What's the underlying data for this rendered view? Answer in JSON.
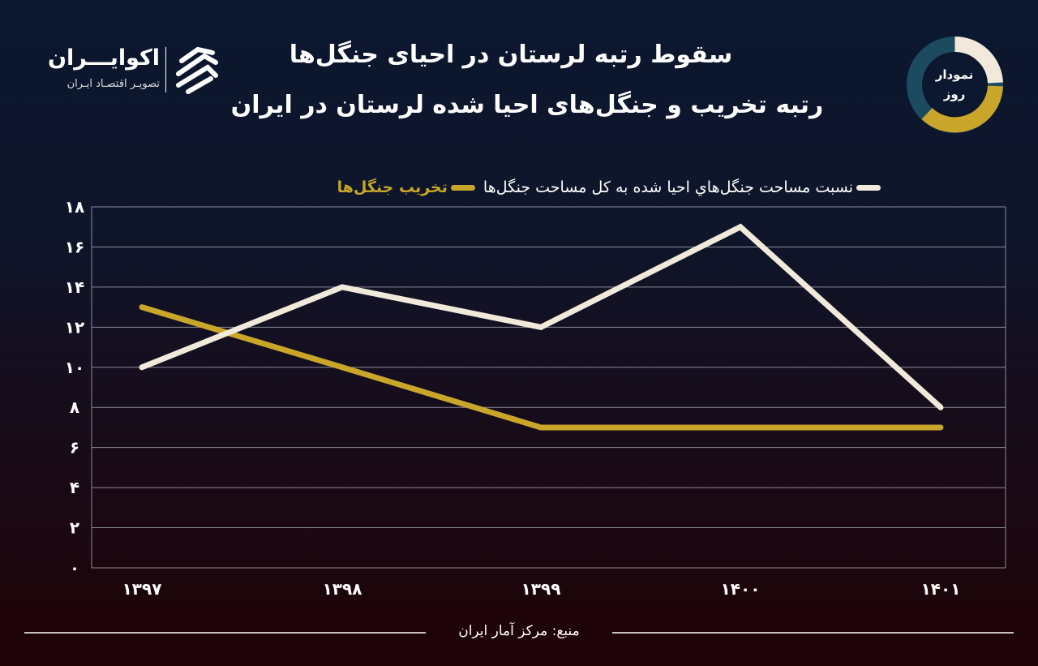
{
  "header": {
    "title_line1": "سقوط رتبه لرستان در احیای جنگل‌ها",
    "title_line2": "رتبه تخریب و جنگل‌های احیا شده لرستان در ایران",
    "logo_name": "اکوایـــران",
    "logo_tagline": "تصویـر اقتصـاد ایـران",
    "badge_text": "نمودار روز"
  },
  "colors": {
    "background_top": "#0b1830",
    "background_bottom": "#1f0206",
    "white_series": "#f1e9da",
    "gold_series": "#c9a52a",
    "grid": "#8a8a9a"
  },
  "chart_data": {
    "type": "line",
    "title": "",
    "xlabel": "",
    "ylabel": "",
    "categories": [
      "۱۳۹۷",
      "۱۳۹۸",
      "۱۳۹۹",
      "۱۴۰۰",
      "۱۴۰۱"
    ],
    "ylim": [
      0,
      18
    ],
    "yticks": [
      0,
      2,
      4,
      6,
      8,
      10,
      12,
      14,
      16,
      18
    ],
    "ytick_labels": [
      "۰",
      "۲",
      "۴",
      "۶",
      "۸",
      "۱۰",
      "۱۲",
      "۱۴",
      "۱۶",
      "۱۸"
    ],
    "grid": true,
    "legend_position": "top",
    "series": [
      {
        "name": "نسبت مساحت جنگل‌هاي احيا شده به کل مساحت جنگل‌ها",
        "color": "#f1e9da",
        "values": [
          10,
          14,
          12,
          17,
          8
        ]
      },
      {
        "name": "تخریب جنگل‌ها",
        "color": "#c9a52a",
        "values": [
          13,
          10,
          7,
          7,
          7
        ]
      }
    ]
  },
  "footer": {
    "source": "منبع: مرکز آمار ایران"
  }
}
